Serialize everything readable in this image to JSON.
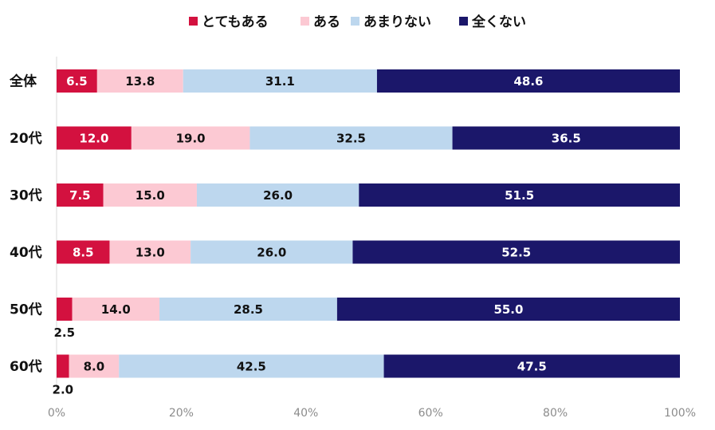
{
  "chart_data": {
    "type": "bar",
    "orientation": "horizontal",
    "stacked": "percent",
    "categories": [
      "全体",
      "20代",
      "30代",
      "40代",
      "50代",
      "60代"
    ],
    "series": [
      {
        "name": "とてもある",
        "color": "#d3113f",
        "label_color": "#ffffff",
        "values": [
          6.5,
          12.0,
          7.5,
          8.5,
          2.5,
          2.0
        ],
        "labels": [
          "6.5",
          "12.0",
          "7.5",
          "8.5",
          "2.5",
          "2.0"
        ]
      },
      {
        "name": "ある",
        "color": "#fcc9d3",
        "label_color": "#111111",
        "values": [
          13.8,
          19.0,
          15.0,
          13.0,
          14.0,
          8.0
        ],
        "labels": [
          "13.8",
          "19.0",
          "15.0",
          "13.0",
          "14.0",
          "8.0"
        ]
      },
      {
        "name": "あまりない",
        "color": "#bdd7ee",
        "label_color": "#111111",
        "values": [
          31.1,
          32.5,
          26.0,
          26.0,
          28.5,
          42.5
        ],
        "labels": [
          "31.1",
          "32.5",
          "26.0",
          "26.0",
          "28.5",
          "42.5"
        ]
      },
      {
        "name": "全くない",
        "color": "#1b176a",
        "label_color": "#ffffff",
        "values": [
          48.6,
          36.5,
          51.5,
          52.5,
          55.0,
          47.5
        ],
        "labels": [
          "48.6",
          "36.5",
          "51.5",
          "52.5",
          "55.0",
          "47.5"
        ]
      }
    ],
    "xlim": [
      0,
      100
    ],
    "xticks": [
      0,
      20,
      40,
      60,
      80,
      100
    ],
    "xtick_labels": [
      "0%",
      "20%",
      "40%",
      "60%",
      "80%",
      "100%"
    ],
    "outside_label_threshold": 3,
    "legend_position": "top",
    "grid": false
  }
}
